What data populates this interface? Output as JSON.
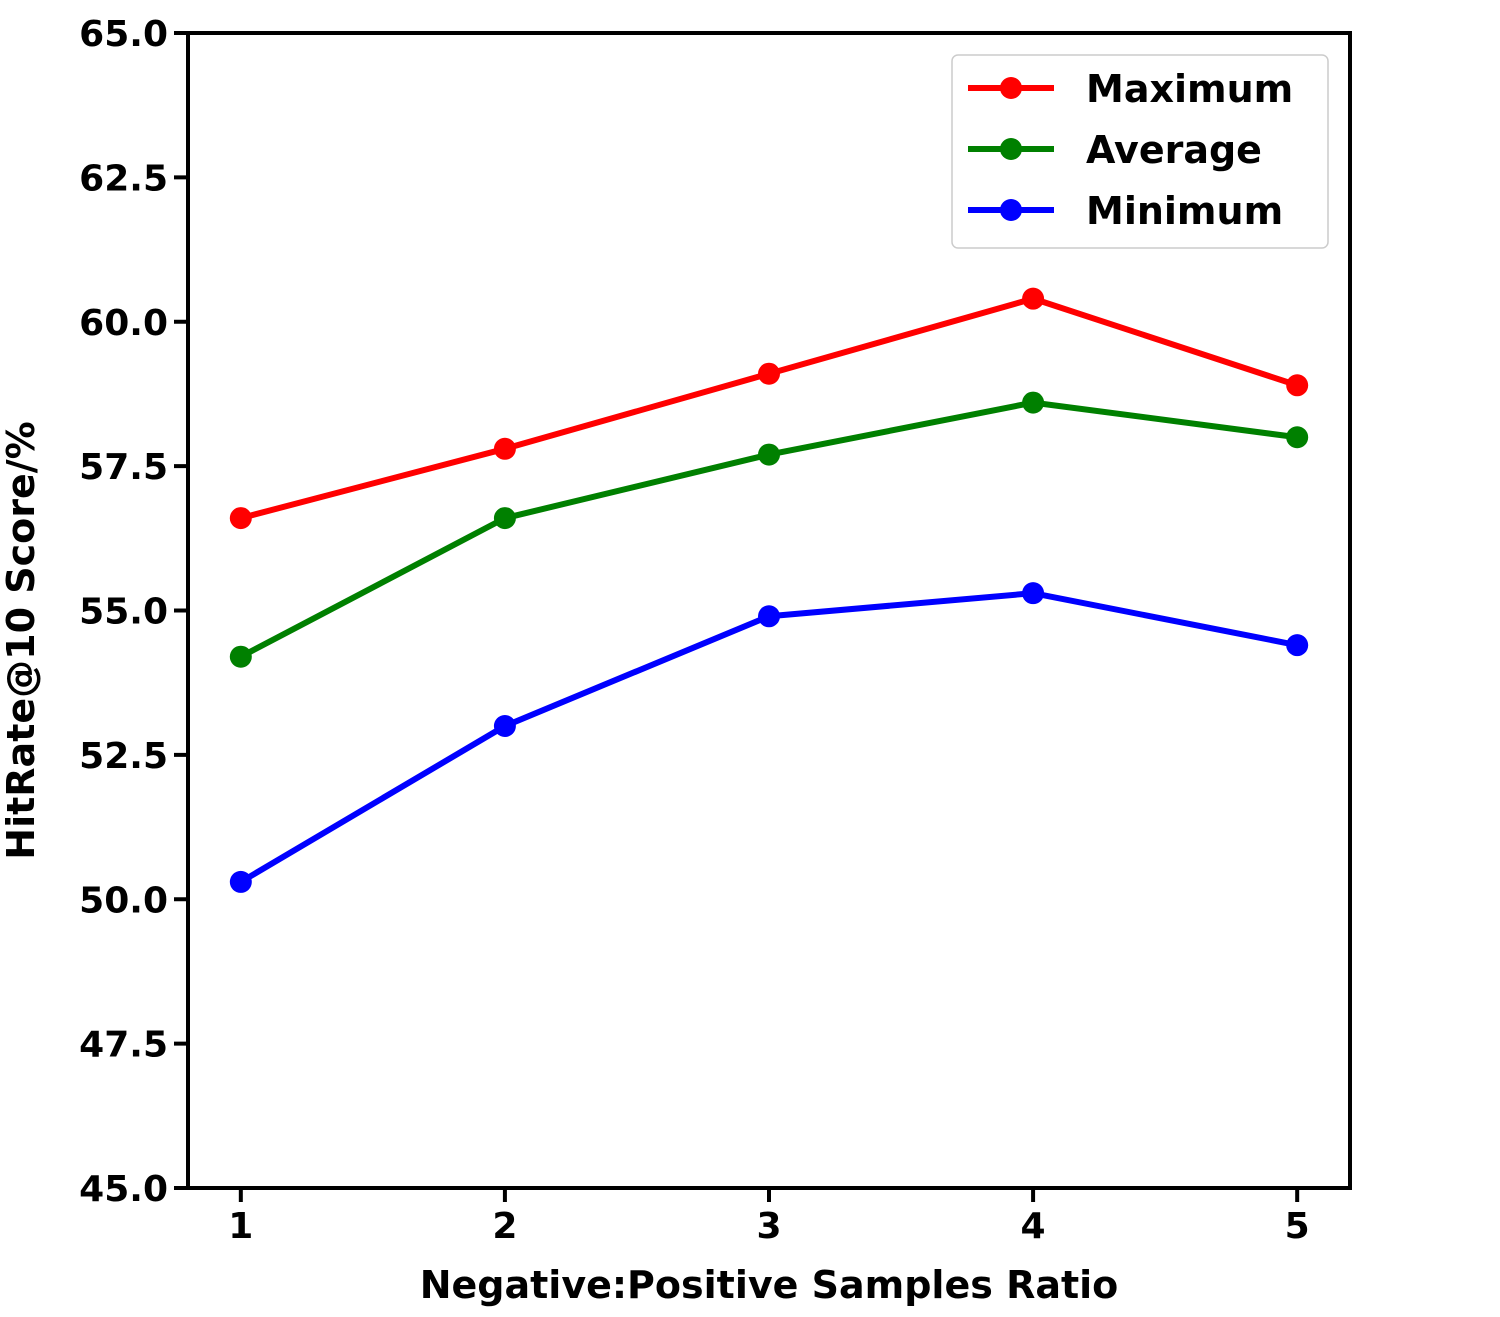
{
  "chart_data": {
    "type": "line",
    "title": "",
    "xlabel": "Negative:Positive Samples Ratio",
    "ylabel": "HitRate@10 Score/%",
    "x": [
      1,
      2,
      3,
      4,
      5
    ],
    "x_tick_labels": [
      "1",
      "2",
      "3",
      "4",
      "5"
    ],
    "ylim": [
      45.0,
      65.0
    ],
    "y_ticks": [
      45.0,
      47.5,
      50.0,
      52.5,
      55.0,
      57.5,
      60.0,
      62.5,
      65.0
    ],
    "y_tick_labels": [
      "45.0",
      "47.5",
      "50.0",
      "52.5",
      "55.0",
      "57.5",
      "60.0",
      "62.5",
      "65.0"
    ],
    "grid": false,
    "legend_position": "top-right",
    "series": [
      {
        "name": "Maximum",
        "color": "#ff0000",
        "values": [
          56.6,
          57.8,
          59.1,
          60.4,
          58.9
        ]
      },
      {
        "name": "Average",
        "color": "#008000",
        "values": [
          54.2,
          56.6,
          57.7,
          58.6,
          58.0
        ]
      },
      {
        "name": "Minimum",
        "color": "#0000ff",
        "values": [
          50.3,
          53.0,
          54.9,
          55.3,
          54.4
        ]
      }
    ]
  }
}
